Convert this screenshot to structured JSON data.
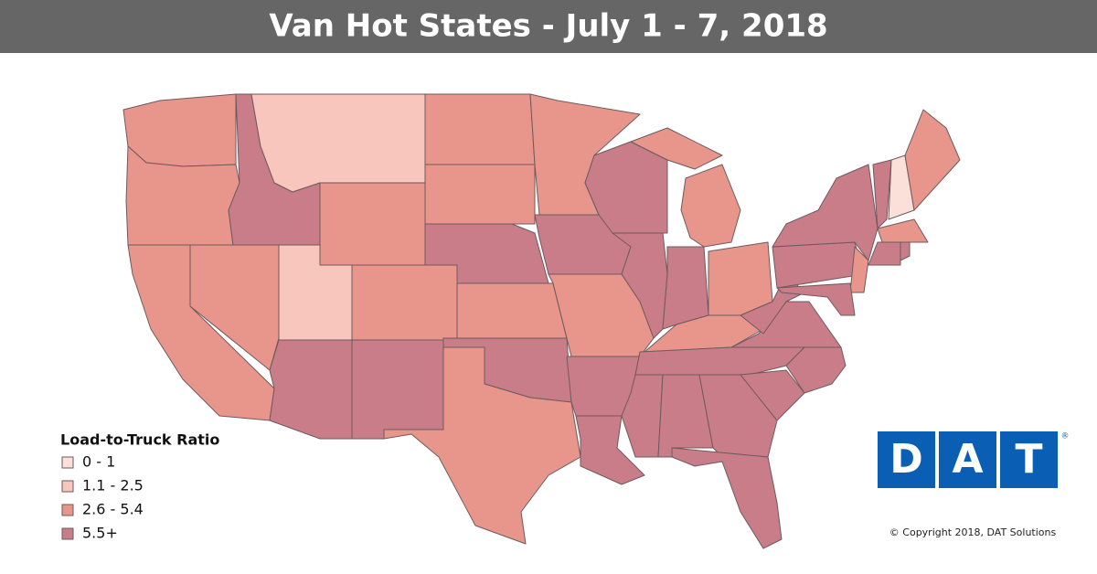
{
  "header": {
    "title": "Van Hot States - July 1 - 7, 2018"
  },
  "legend": {
    "title": "Load-to-Truck Ratio",
    "items": [
      {
        "label": "0 - 1",
        "color": "#fbe0da"
      },
      {
        "label": "1.1 - 2.5",
        "color": "#f8c6bd"
      },
      {
        "label": "2.6 - 5.4",
        "color": "#e8968b"
      },
      {
        "label": "5.5+",
        "color": "#c97d88"
      }
    ]
  },
  "logo": {
    "letters": [
      "D",
      "A",
      "T"
    ],
    "mark": "®"
  },
  "footer": {
    "copyright": "© Copyright 2018, DAT Solutions"
  }
}
